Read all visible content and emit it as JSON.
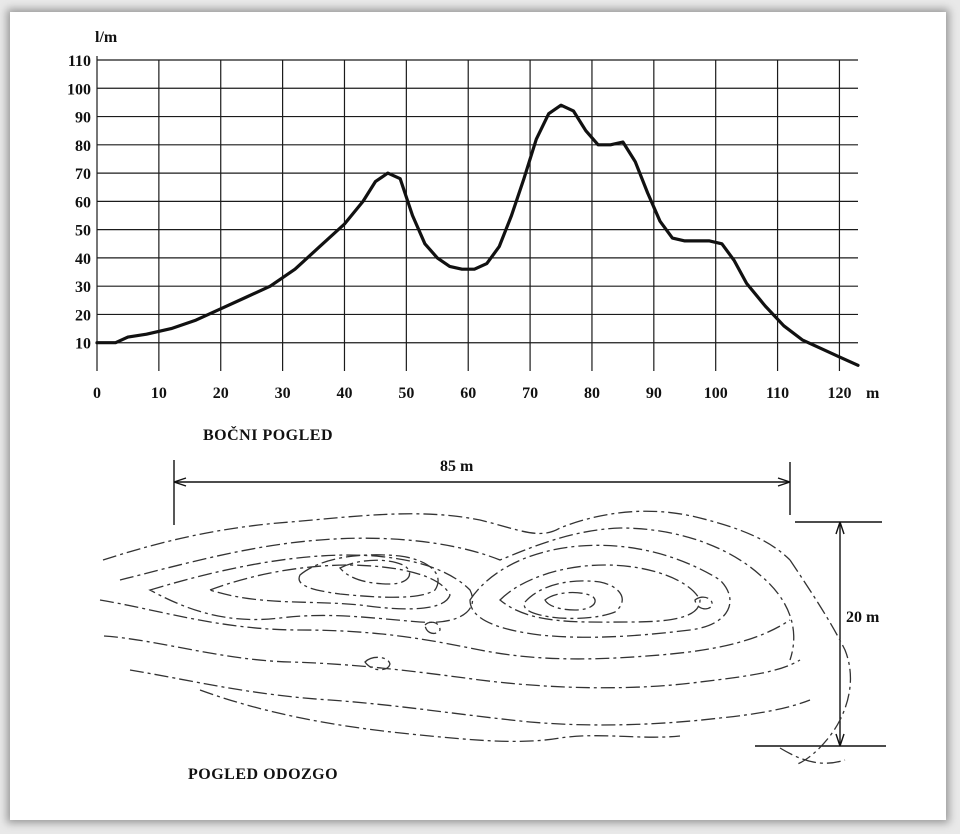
{
  "chart_data": [
    {
      "type": "line",
      "title": "BOČNI POGLED",
      "ylabel": "l/m",
      "xlabel": "m",
      "x_ticks": [
        "0",
        "10",
        "20",
        "30",
        "40",
        "50",
        "60",
        "70",
        "80",
        "90",
        "100",
        "110",
        "120"
      ],
      "y_ticks": [
        "10",
        "20",
        "30",
        "40",
        "50",
        "60",
        "70",
        "80",
        "90",
        "100",
        "110"
      ],
      "xlim": [
        0,
        123
      ],
      "ylim": [
        0,
        110
      ],
      "grid": true,
      "series": [
        {
          "x": [
            0,
            3,
            5,
            8,
            12,
            16,
            20,
            24,
            28,
            32,
            36,
            40,
            43,
            45,
            47,
            49,
            51,
            53,
            55,
            57,
            59,
            61,
            63,
            65,
            67,
            69,
            71,
            73,
            75,
            77,
            79,
            81,
            83,
            85,
            87,
            89,
            91,
            93,
            95,
            97,
            99,
            101,
            103,
            105,
            108,
            111,
            114,
            117,
            120,
            123
          ],
          "y": [
            10,
            10,
            12,
            13,
            15,
            18,
            22,
            26,
            30,
            36,
            44,
            52,
            60,
            67,
            70,
            68,
            55,
            45,
            40,
            37,
            36,
            36,
            38,
            44,
            55,
            68,
            82,
            91,
            94,
            92,
            85,
            80,
            80,
            81,
            74,
            63,
            53,
            47,
            46,
            46,
            46,
            45,
            39,
            31,
            23,
            16,
            11,
            8,
            5,
            2
          ]
        }
      ]
    },
    {
      "type": "diagram",
      "title": "POGLED ODOZGO",
      "dimensions": [
        {
          "label": "85 m",
          "orientation": "horizontal"
        },
        {
          "label": "20 m",
          "orientation": "vertical"
        }
      ]
    }
  ]
}
